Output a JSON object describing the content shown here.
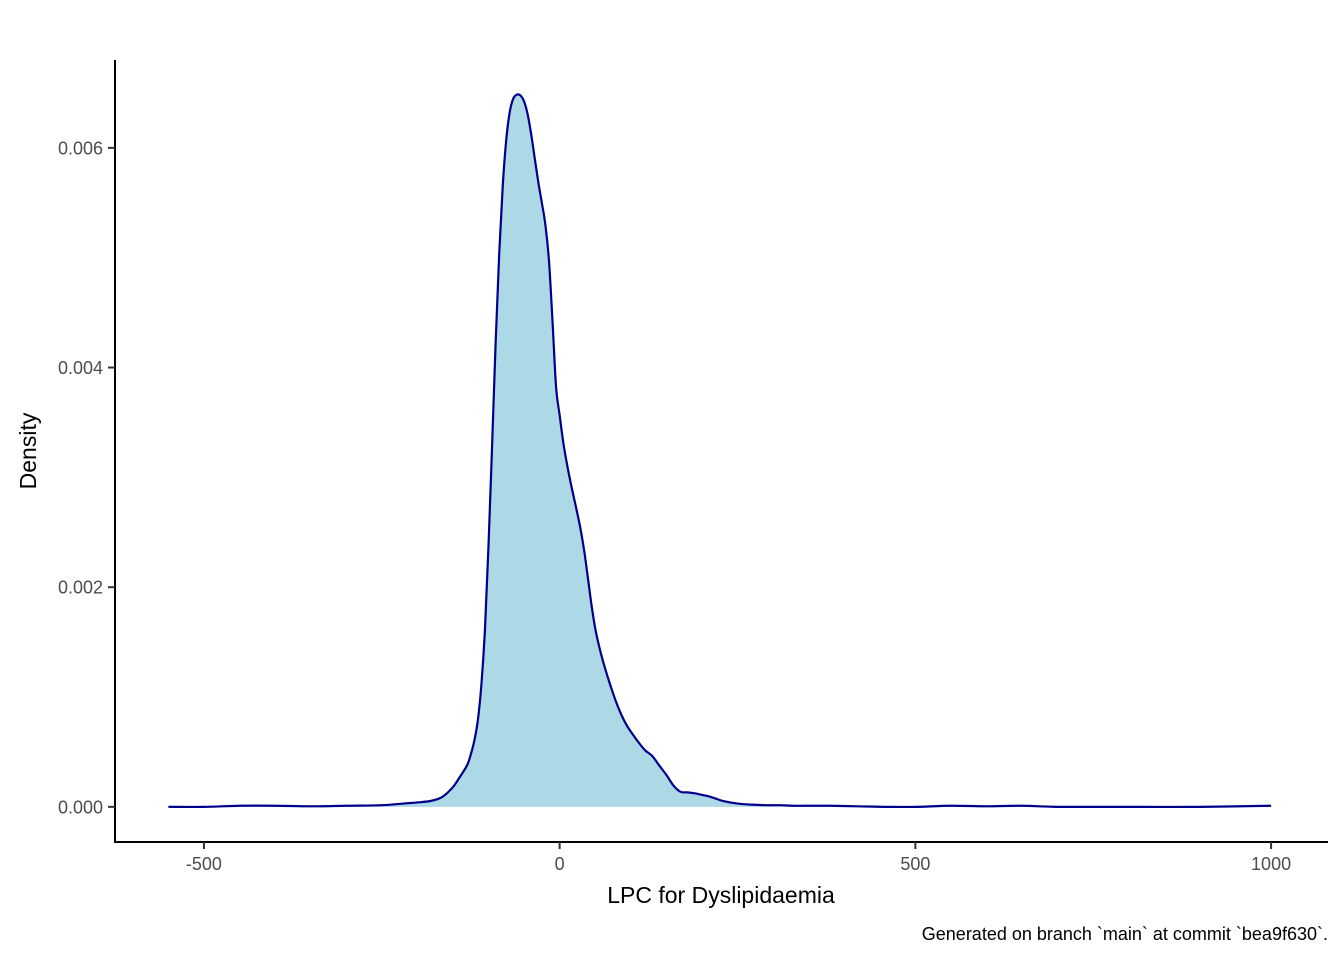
{
  "chart_data": {
    "type": "area",
    "title": "",
    "xlabel": "LPC for Dyslipidaemia",
    "ylabel": "Density",
    "caption": "Generated on branch `main` at commit `bea9f630`.",
    "xlim": [
      -625,
      1080
    ],
    "ylim": [
      -0.00032,
      0.0068
    ],
    "x_ticks": [
      -500,
      0,
      500,
      1000
    ],
    "x_tick_labels": [
      "-500",
      "0",
      "500",
      "1000"
    ],
    "y_ticks": [
      0,
      0.002,
      0.004,
      0.006
    ],
    "y_tick_labels": [
      "0.000",
      "0.002",
      "0.004",
      "0.006"
    ],
    "grid": false,
    "legend": "none",
    "fill_color": "#add8e6",
    "line_color": "#00008b",
    "series": [
      {
        "x": [
          -550,
          -500,
          -450,
          -400,
          -350,
          -300,
          -250,
          -220,
          -200,
          -180,
          -165,
          -150,
          -140,
          -130,
          -125,
          -120,
          -115,
          -110,
          -105,
          -100,
          -95,
          -90,
          -85,
          -80,
          -75,
          -70,
          -65,
          -60,
          -55,
          -50,
          -45,
          -40,
          -35,
          -30,
          -25,
          -20,
          -15,
          -10,
          -5,
          0,
          5,
          10,
          15,
          20,
          25,
          30,
          35,
          40,
          45,
          50,
          55,
          60,
          65,
          70,
          75,
          80,
          85,
          90,
          95,
          100,
          110,
          120,
          130,
          140,
          150,
          160,
          170,
          180,
          190,
          200,
          210,
          220,
          230,
          250,
          270,
          290,
          310,
          330,
          350,
          380,
          420,
          460,
          500,
          550,
          600,
          650,
          700,
          800,
          900,
          1000
        ],
        "y": [
          5e-07,
          0,
          1e-05,
          1e-05,
          5e-06,
          1e-05,
          1.5e-05,
          3e-05,
          4e-05,
          5.56e-05,
          9e-05,
          0.00018,
          0.000275,
          0.00038,
          0.000475,
          0.0006,
          0.000787,
          0.001112,
          0.001613,
          0.002378,
          0.003281,
          0.004222,
          0.005031,
          0.005651,
          0.006078,
          0.006332,
          0.006451,
          0.006485,
          0.006477,
          0.006422,
          0.006306,
          0.006124,
          0.005904,
          0.005688,
          0.005499,
          0.005297,
          0.004972,
          0.004417,
          0.003819,
          0.003566,
          0.003322,
          0.003131,
          0.002966,
          0.002816,
          0.002668,
          0.002507,
          0.00231,
          0.00207,
          0.001828,
          0.001625,
          0.001475,
          0.001348,
          0.001236,
          0.001132,
          0.001035,
          0.000944,
          0.000864,
          0.000794,
          0.000734,
          0.000685,
          0.000595,
          0.000516,
          0.000464,
          0.000377,
          0.000291,
          0.000194,
          0.000137,
          0.000132,
          0.000123,
          0.000109,
          9.5e-05,
          7.4e-05,
          5.3e-05,
          3e-05,
          2e-05,
          1.5e-05,
          1.5e-05,
          1e-05,
          1e-05,
          1e-05,
          5e-06,
          0,
          0,
          1e-05,
          5e-06,
          1e-05,
          0,
          0,
          0,
          1e-05
        ]
      }
    ]
  }
}
